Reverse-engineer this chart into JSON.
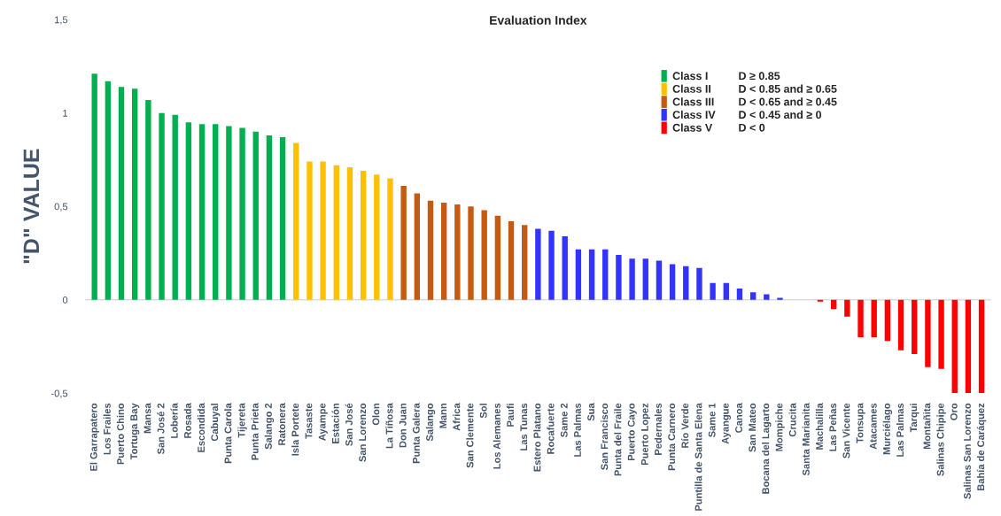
{
  "chart_data": {
    "type": "bar",
    "title": "Evaluation Index",
    "ylabel": "\"D\" VALUE",
    "categories": [
      "El Garrapatero",
      "Los Frailes",
      "Puerto Chino",
      "Tortuga Bay",
      "Mansa",
      "San José 2",
      "Lobería",
      "Rosada",
      "Escondida",
      "Cabuyal",
      "Punta Carola",
      "Tijereta",
      "Punta Prieta",
      "Salango 2",
      "Ratonera",
      "Isla Portete",
      "Tasaste",
      "Ayampe",
      "Estación",
      "San José",
      "San Lorenzo",
      "Olon",
      "La Tiñosa",
      "Don Juan",
      "Punta Galera",
      "Salango",
      "Mann",
      "Africa",
      "San Clemente",
      "Sol",
      "Los Alemanes",
      "Paufi",
      "Las Tunas",
      "Estero Platano",
      "Rocafuerte",
      "Same 2",
      "Las Palmas",
      "Sua",
      "San Francisco",
      "Punta del Fraile",
      "Puerto Cayo",
      "Puerto Lopez",
      "Pedernales",
      "Punta Carnero",
      "Río Verde",
      "Puntilla de Santa Elena",
      "Same 1",
      "Ayangue",
      "Canoa",
      "San Mateo",
      "Bocana del Lagarto",
      "Mompiche",
      "Crucita",
      "Santa Marianita",
      "Machalilla",
      "Las Peñas",
      "San Vicente",
      "Tonsupa",
      "Atacames",
      "Murciélago",
      "Las Palmas",
      "Tarqui",
      "Montañita",
      "Salinas Chipipe",
      "Oro",
      "Salinas San Lorenzo",
      "Bahía de Caráquez"
    ],
    "series": [
      {
        "name": "Class I",
        "color": "#00b050",
        "values": [
          1.21,
          1.17,
          1.14,
          1.13,
          1.07,
          1.0,
          0.99,
          0.95,
          0.94,
          0.94,
          0.93,
          0.92,
          0.9,
          0.88,
          0.87,
          null,
          null,
          null,
          null,
          null,
          null,
          null,
          null,
          null,
          null,
          null,
          null,
          null,
          null,
          null,
          null,
          null,
          null,
          null,
          null,
          null,
          null,
          null,
          null,
          null,
          null,
          null,
          null,
          null,
          null,
          null,
          null,
          null,
          null,
          null,
          null,
          null,
          null,
          null,
          null,
          null,
          null,
          null,
          null,
          null,
          null,
          null,
          null,
          null,
          null,
          null,
          null
        ]
      },
      {
        "name": "Class II",
        "color": "#ffc000",
        "values": [
          null,
          null,
          null,
          null,
          null,
          null,
          null,
          null,
          null,
          null,
          null,
          null,
          null,
          null,
          null,
          0.84,
          0.74,
          0.74,
          0.72,
          0.71,
          0.69,
          0.67,
          0.65,
          null,
          null,
          null,
          null,
          null,
          null,
          null,
          null,
          null,
          null,
          null,
          null,
          null,
          null,
          null,
          null,
          null,
          null,
          null,
          null,
          null,
          null,
          null,
          null,
          null,
          null,
          null,
          null,
          null,
          null,
          null,
          null,
          null,
          null,
          null,
          null,
          null,
          null,
          null,
          null,
          null,
          null,
          null,
          null
        ]
      },
      {
        "name": "Class III",
        "color": "#c55a11",
        "values": [
          null,
          null,
          null,
          null,
          null,
          null,
          null,
          null,
          null,
          null,
          null,
          null,
          null,
          null,
          null,
          null,
          null,
          null,
          null,
          null,
          null,
          null,
          null,
          0.61,
          0.57,
          0.53,
          0.52,
          0.51,
          0.5,
          0.48,
          0.45,
          0.42,
          0.4,
          null,
          null,
          null,
          null,
          null,
          null,
          null,
          null,
          null,
          null,
          null,
          null,
          null,
          null,
          null,
          null,
          null,
          null,
          null,
          null,
          null,
          null,
          null,
          null,
          null,
          null,
          null,
          null,
          null,
          null,
          null,
          null,
          null,
          null
        ]
      },
      {
        "name": "Class IV",
        "color": "#3333ff",
        "values": [
          null,
          null,
          null,
          null,
          null,
          null,
          null,
          null,
          null,
          null,
          null,
          null,
          null,
          null,
          null,
          null,
          null,
          null,
          null,
          null,
          null,
          null,
          null,
          null,
          null,
          null,
          null,
          null,
          null,
          null,
          null,
          null,
          null,
          0.38,
          0.37,
          0.34,
          0.27,
          0.27,
          0.27,
          0.24,
          0.22,
          0.22,
          0.21,
          0.19,
          0.18,
          0.17,
          0.09,
          0.09,
          0.06,
          0.04,
          0.03,
          0.01,
          0,
          0,
          null,
          null,
          null,
          null,
          null,
          null,
          null,
          null,
          null,
          null,
          null,
          null,
          null
        ]
      },
      {
        "name": "Class V",
        "color": "#ff0000",
        "values": [
          null,
          null,
          null,
          null,
          null,
          null,
          null,
          null,
          null,
          null,
          null,
          null,
          null,
          null,
          null,
          null,
          null,
          null,
          null,
          null,
          null,
          null,
          null,
          null,
          null,
          null,
          null,
          null,
          null,
          null,
          null,
          null,
          null,
          null,
          null,
          null,
          null,
          null,
          null,
          null,
          null,
          null,
          null,
          null,
          null,
          null,
          null,
          null,
          null,
          null,
          null,
          null,
          null,
          null,
          -0.01,
          -0.05,
          -0.09,
          -0.2,
          -0.2,
          -0.22,
          -0.27,
          -0.29,
          -0.36,
          -0.37,
          -0.5,
          -0.5,
          -0.5
        ]
      }
    ],
    "annotations": [
      "D ≥ 0.85",
      "D < 0.85 and ≥ 0.65",
      "D < 0.65 and ≥ 0.45",
      "D < 0.45 and ≥ 0",
      "D < 0"
    ],
    "ylim": [
      -0.5,
      1.5
    ],
    "yticks": [
      {
        "value": -0.5,
        "label": "-0,5"
      },
      0,
      {
        "value": 0.5,
        "label": "0,5"
      },
      1,
      {
        "value": 1.5,
        "label": "1,5"
      }
    ],
    "ref_lines": [
      {
        "axis": "y",
        "value": 0,
        "color": "#d9dde3"
      }
    ],
    "grid": false,
    "legend": "top right"
  }
}
